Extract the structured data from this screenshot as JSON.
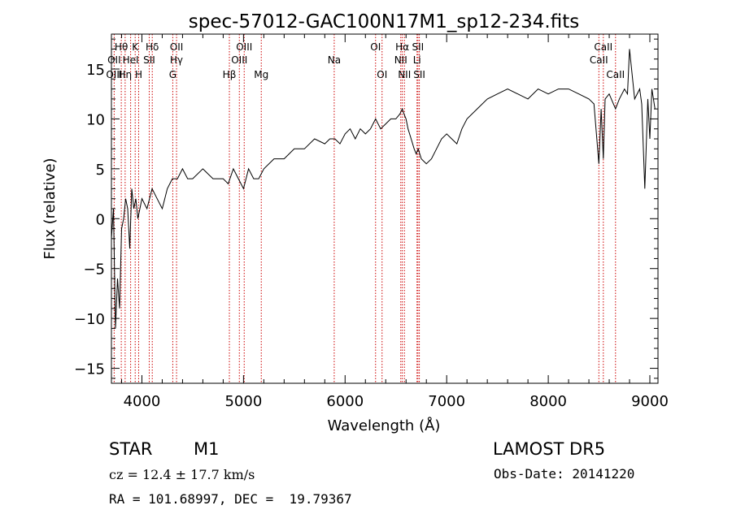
{
  "chart_data": {
    "type": "line",
    "title": "spec-57012-GAC100N17M1_sp12-234.fits",
    "xlabel": "Wavelength (Å)",
    "ylabel": "Flux (relative)",
    "xlim": [
      3700,
      9080
    ],
    "ylim": [
      -16.5,
      18.5
    ],
    "xticks": [
      4000,
      5000,
      6000,
      7000,
      8000,
      9000
    ],
    "yticks": [
      -15,
      -10,
      -5,
      0,
      5,
      10,
      15
    ],
    "grid": false,
    "series": [
      {
        "x": [
          3700,
          3720,
          3740,
          3760,
          3780,
          3800,
          3820,
          3840,
          3860,
          3880,
          3900,
          3920,
          3940,
          3960,
          3980,
          4000,
          4050,
          4100,
          4150,
          4200,
          4250,
          4300,
          4350,
          4400,
          4450,
          4500,
          4600,
          4700,
          4800,
          4850,
          4900,
          4950,
          5000,
          5050,
          5100,
          5150,
          5200,
          5300,
          5400,
          5500,
          5600,
          5700,
          5800,
          5850,
          5900,
          5950,
          6000,
          6050,
          6100,
          6150,
          6200,
          6250,
          6300,
          6350,
          6400,
          6450,
          6500,
          6540,
          6563,
          6580,
          6600,
          6620,
          6650,
          6680,
          6700,
          6720,
          6750,
          6800,
          6850,
          6900,
          6950,
          7000,
          7050,
          7100,
          7150,
          7200,
          7300,
          7400,
          7500,
          7600,
          7700,
          7800,
          7900,
          8000,
          8100,
          8200,
          8300,
          8400,
          8450,
          8498,
          8520,
          8542,
          8560,
          8600,
          8662,
          8700,
          8750,
          8780,
          8800,
          8850,
          8900,
          8920,
          8950,
          8980,
          9000,
          9020,
          9050
        ],
        "y": [
          -2,
          1,
          -11,
          -6,
          -9,
          -1,
          0,
          2,
          1,
          -3,
          3,
          1,
          2,
          0,
          1,
          2,
          1,
          3,
          2,
          1,
          3,
          4,
          4,
          5,
          4,
          4,
          5,
          4,
          4,
          3.5,
          5,
          4,
          3,
          5,
          4,
          4,
          5,
          6,
          6,
          7,
          7,
          8,
          7.5,
          8,
          8,
          7.5,
          8.5,
          9,
          8,
          9,
          8.5,
          9,
          10,
          9,
          9.5,
          10,
          10,
          10.5,
          11,
          10.5,
          10,
          9,
          8,
          7,
          6.5,
          7,
          6,
          5.5,
          6,
          7,
          8,
          8.5,
          8,
          7.5,
          9,
          10,
          11,
          12,
          12.5,
          13,
          12.5,
          12,
          13,
          12.5,
          13,
          13,
          12.5,
          12,
          11.5,
          5.5,
          11,
          6,
          12,
          12.5,
          11,
          12,
          13,
          12.5,
          17,
          12,
          13,
          11.5,
          3,
          12,
          8,
          13,
          11
        ]
      }
    ],
    "annotations": [
      {
        "text": "Hθ",
        "x": 3797,
        "row": 1
      },
      {
        "text": "K",
        "x": 3934,
        "row": 1
      },
      {
        "text": "Hδ",
        "x": 4102,
        "row": 1
      },
      {
        "text": "OII",
        "x": 4341,
        "row": 1
      },
      {
        "text": "OIII",
        "x": 5007,
        "row": 1
      },
      {
        "text": "OI",
        "x": 6300,
        "row": 1
      },
      {
        "text": "Hα",
        "x": 6563,
        "row": 1
      },
      {
        "text": "SII",
        "x": 6717,
        "row": 1
      },
      {
        "text": "CaII",
        "x": 8542,
        "row": 1
      },
      {
        "text": "OII",
        "x": 3727,
        "row": 2
      },
      {
        "text": "HeI",
        "x": 3889,
        "row": 2
      },
      {
        "text": "SII",
        "x": 4072,
        "row": 2
      },
      {
        "text": "Hγ",
        "x": 4340,
        "row": 2
      },
      {
        "text": "OIII",
        "x": 4959,
        "row": 2
      },
      {
        "text": "Na",
        "x": 5893,
        "row": 2
      },
      {
        "text": "NII",
        "x": 6548,
        "row": 2
      },
      {
        "text": "Li",
        "x": 6708,
        "row": 2
      },
      {
        "text": "CaII",
        "x": 8498,
        "row": 2
      },
      {
        "text": "OIII",
        "x": 3727,
        "row": 3
      },
      {
        "text": "Hη",
        "x": 3835,
        "row": 3
      },
      {
        "text": "H",
        "x": 3968,
        "row": 3
      },
      {
        "text": "G",
        "x": 4304,
        "row": 3
      },
      {
        "text": "Hβ",
        "x": 4861,
        "row": 3
      },
      {
        "text": "Mg",
        "x": 5175,
        "row": 3
      },
      {
        "text": "OI",
        "x": 6364,
        "row": 3
      },
      {
        "text": "NII",
        "x": 6584,
        "row": 3
      },
      {
        "text": "SII",
        "x": 6731,
        "row": 3
      },
      {
        "text": "CaII",
        "x": 8662,
        "row": 3
      }
    ],
    "lines_x": [
      3727,
      3797,
      3835,
      3889,
      3934,
      3968,
      4072,
      4102,
      4304,
      4341,
      4861,
      4959,
      5007,
      5175,
      5893,
      6300,
      6364,
      6548,
      6563,
      6584,
      6708,
      6717,
      6731,
      8498,
      8542,
      8662
    ],
    "line_color": "#cc0000"
  },
  "info": {
    "class_label": "STAR",
    "subclass": "M1",
    "survey": "LAMOST DR5",
    "cz": "cz = 12.4 ± 17.7 km/s",
    "obs_date": "Obs-Date: 20141220",
    "coords": "RA = 101.68997, DEC =  19.79367"
  }
}
